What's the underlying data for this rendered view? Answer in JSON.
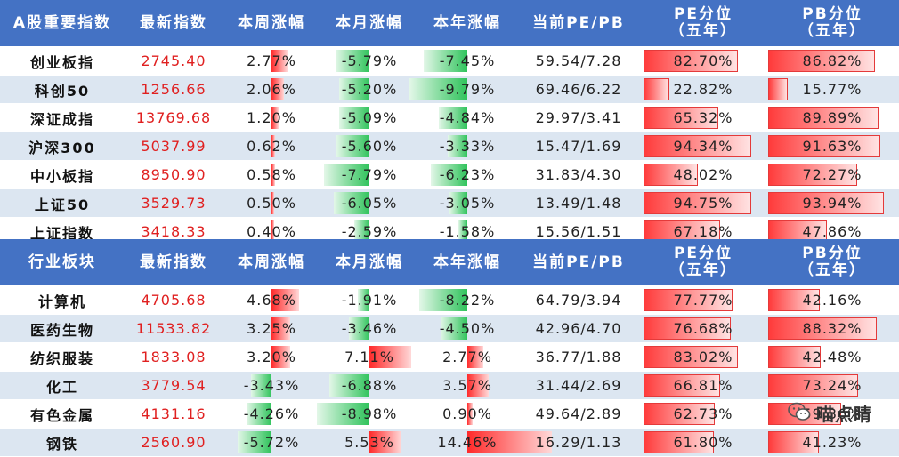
{
  "sections": [
    {
      "headers": [
        "A股重要指数",
        "最新指数",
        "本周涨幅",
        "本月涨幅",
        "本年涨幅",
        "当前PE/PB",
        [
          "PE分位",
          "（五年）"
        ],
        [
          "PB分位",
          "（五年）"
        ]
      ],
      "rows": [
        {
          "name": "创业板指",
          "index": "2745.40",
          "week": "2.77%",
          "month": "-5.79%",
          "year": "-7.45%",
          "pepb": "59.54/7.28",
          "pe_pct": "82.70%",
          "pb_pct": "86.82%"
        },
        {
          "name": "科创50",
          "index": "1256.66",
          "week": "2.06%",
          "month": "-5.20%",
          "year": "-9.79%",
          "pepb": "69.46/6.22",
          "pe_pct": "22.82%",
          "pb_pct": "15.77%"
        },
        {
          "name": "深证成指",
          "index": "13769.68",
          "week": "1.20%",
          "month": "-5.09%",
          "year": "-4.84%",
          "pepb": "29.97/3.41",
          "pe_pct": "65.32%",
          "pb_pct": "89.89%"
        },
        {
          "name": "沪深300",
          "index": "5037.99",
          "week": "0.62%",
          "month": "-5.60%",
          "year": "-3.33%",
          "pepb": "15.47/1.69",
          "pe_pct": "94.34%",
          "pb_pct": "91.63%"
        },
        {
          "name": "中小板指",
          "index": "8950.90",
          "week": "0.58%",
          "month": "-7.79%",
          "year": "-6.23%",
          "pepb": "31.83/4.30",
          "pe_pct": "48.02%",
          "pb_pct": "72.27%"
        },
        {
          "name": "上证50",
          "index": "3529.73",
          "week": "0.50%",
          "month": "-6.05%",
          "year": "-3.05%",
          "pepb": "13.49/1.48",
          "pe_pct": "94.75%",
          "pb_pct": "93.94%"
        },
        {
          "name": "上证指数",
          "index": "3418.33",
          "week": "0.40%",
          "month": "-2.59%",
          "year": "-1.58%",
          "pepb": "15.56/1.51",
          "pe_pct": "67.18%",
          "pb_pct": "47.86%"
        }
      ]
    },
    {
      "headers": [
        "行业板块",
        "最新指数",
        "本周涨幅",
        "本月涨幅",
        "本年涨幅",
        "当前PE/PB",
        [
          "PE分位",
          "（五年）"
        ],
        [
          "PB分位",
          "（五年）"
        ]
      ],
      "rows": [
        {
          "name": "计算机",
          "index": "4705.68",
          "week": "4.68%",
          "month": "-1.91%",
          "year": "-8.22%",
          "pepb": "64.79/3.94",
          "pe_pct": "77.77%",
          "pb_pct": "42.16%"
        },
        {
          "name": "医药生物",
          "index": "11533.82",
          "week": "3.25%",
          "month": "-3.46%",
          "year": "-4.50%",
          "pepb": "42.96/4.70",
          "pe_pct": "76.68%",
          "pb_pct": "88.32%"
        },
        {
          "name": "纺织服装",
          "index": "1833.08",
          "week": "3.20%",
          "month": "7.11%",
          "year": "2.77%",
          "pepb": "36.77/1.88",
          "pe_pct": "83.02%",
          "pb_pct": "42.48%"
        },
        {
          "name": "化工",
          "index": "3779.54",
          "week": "-3.43%",
          "month": "-6.88%",
          "year": "3.57%",
          "pepb": "31.44/2.69",
          "pe_pct": "66.81%",
          "pb_pct": "73.24%"
        },
        {
          "name": "有色金属",
          "index": "4131.16",
          "week": "-4.26%",
          "month": "-8.98%",
          "year": "0.90%",
          "pepb": "49.64/2.89",
          "pe_pct": "62.73%",
          "pb_pct": "59.36%"
        },
        {
          "name": "钢铁",
          "index": "2560.90",
          "week": "-5.72%",
          "month": "5.53%",
          "year": "14.46%",
          "pepb": "16.29/1.13",
          "pe_pct": "61.80%",
          "pb_pct": "41.23%"
        }
      ]
    }
  ],
  "watermark": {
    "text": "喵点睛",
    "icon": "wechat-icon"
  },
  "colors": {
    "header_bg": "#4472c4",
    "stripe": "#dce6f1",
    "up": "#ff2a2a",
    "down": "#2fc35b",
    "index_text": "#e02020"
  }
}
